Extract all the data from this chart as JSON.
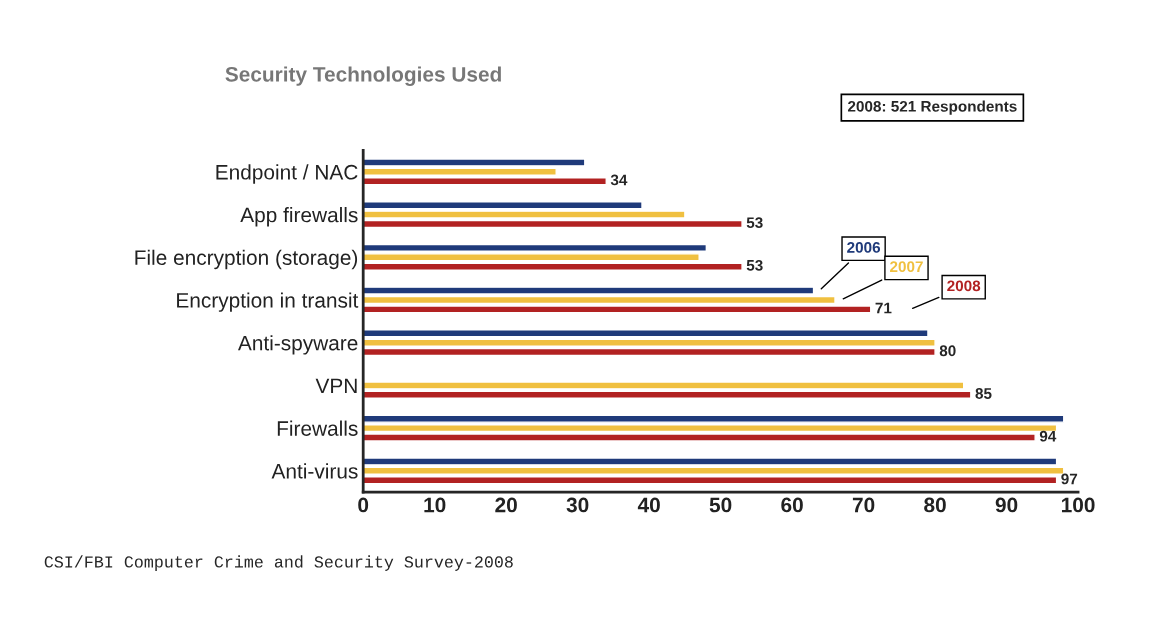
{
  "chart_data": {
    "type": "bar",
    "orientation": "horizontal",
    "title": "Security Technologies Used",
    "categories": [
      "Endpoint / NAC",
      "App firewalls",
      "File encryption (storage)",
      "Encryption in transit",
      "Anti-spyware",
      "VPN",
      "Firewalls",
      "Anti-virus"
    ],
    "series": [
      {
        "name": "2006",
        "color": "#1f3a7a",
        "values": [
          31,
          39,
          48,
          63,
          79,
          null,
          98,
          97
        ]
      },
      {
        "name": "2007",
        "color": "#f0c040",
        "values": [
          27,
          45,
          47,
          66,
          80,
          84,
          97,
          98
        ]
      },
      {
        "name": "2008",
        "color": "#b22222",
        "values": [
          34,
          53,
          53,
          71,
          80,
          85,
          94,
          97
        ],
        "value_labels": [
          "34",
          "53",
          "53",
          "71",
          "80",
          "85",
          "94",
          "97"
        ]
      }
    ],
    "xlim": [
      0,
      100
    ],
    "xticks": [
      0,
      10,
      20,
      30,
      40,
      50,
      60,
      70,
      80,
      90,
      100
    ],
    "grid": false,
    "legend": false,
    "annotations": [
      "2008: 521 Respondents",
      "CSI/FBI Computer Crime and Security Survey-2008"
    ]
  }
}
